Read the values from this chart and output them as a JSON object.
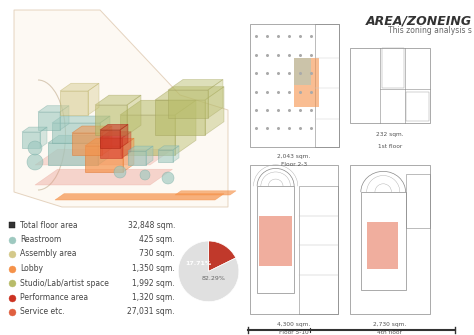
{
  "title": "AREA/ZONEING",
  "subtitle": "This zoning analysis s",
  "background_color": "#ffffff",
  "legend_items": [
    {
      "label": "Total floor area",
      "value": "32,848 sqm.",
      "color": "#333333",
      "marker": "s",
      "size": 5
    },
    {
      "label": "Reastroom",
      "value": "425 sqm.",
      "color": "#9ec9c0",
      "marker": "o",
      "size": 5
    },
    {
      "label": "Assembly area",
      "value": "730 sqm.",
      "color": "#d4c98a",
      "marker": "o",
      "size": 5
    },
    {
      "label": "Lobby",
      "value": "1,350 sqm.",
      "color": "#f5924a",
      "marker": "o",
      "size": 5
    },
    {
      "label": "Studio/Lab/artist space",
      "value": "1,992 sqm.",
      "color": "#b8bc6a",
      "marker": "o",
      "size": 5
    },
    {
      "label": "Performance area",
      "value": "1,320 sqm.",
      "color": "#cc3322",
      "marker": "o",
      "size": 5
    },
    {
      "label": "Service etc.",
      "value": "27,031 sqm.",
      "color": "#e06040",
      "marker": "o",
      "size": 5
    }
  ],
  "pie_values": [
    17.71,
    82.29
  ],
  "pie_colors": [
    "#c0392b",
    "#e0e0e0"
  ],
  "pie_label_small": "17.71%",
  "pie_label_large": "82.29%",
  "title_fontsize": 9,
  "subtitle_fontsize": 5.5,
  "legend_fontsize": 5.5,
  "value_fontsize": 5.5
}
